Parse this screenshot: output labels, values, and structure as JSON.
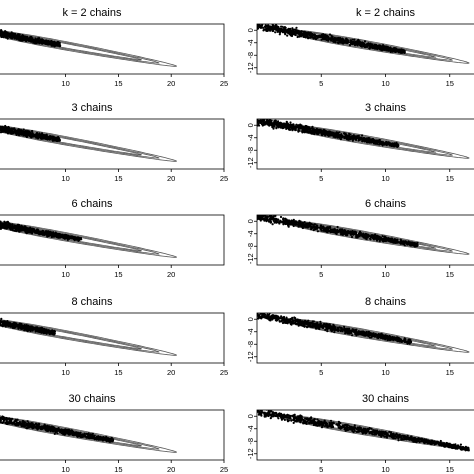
{
  "chart_data": [
    {
      "type": "scatter",
      "title": "k = 2 chains",
      "x_ticks": [
        "10",
        "15",
        "20",
        "25"
      ],
      "y_ticks": [],
      "xlim": [
        0,
        25
      ],
      "ylim": [
        -14,
        2
      ],
      "cloud_end_x": 9.5,
      "contour_levels": 3
    },
    {
      "type": "scatter",
      "title": "k = 2 chains",
      "x_ticks": [
        "5",
        "10",
        "15"
      ],
      "y_ticks": [
        "0",
        "-4",
        "-8",
        "-12"
      ],
      "xlim": [
        0,
        20
      ],
      "ylim": [
        -14,
        2
      ],
      "cloud_end_x": 11.5,
      "contour_levels": 3
    },
    {
      "type": "scatter",
      "title": "3 chains",
      "x_ticks": [
        "10",
        "15",
        "20",
        "25"
      ],
      "y_ticks": [],
      "xlim": [
        0,
        25
      ],
      "ylim": [
        -14,
        2
      ],
      "cloud_end_x": 9.5,
      "contour_levels": 3
    },
    {
      "type": "scatter",
      "title": "3 chains",
      "x_ticks": [
        "5",
        "10",
        "15"
      ],
      "y_ticks": [
        "0",
        "-4",
        "-8",
        "-12"
      ],
      "xlim": [
        0,
        20
      ],
      "ylim": [
        -14,
        2
      ],
      "cloud_end_x": 11.0,
      "contour_levels": 3
    },
    {
      "type": "scatter",
      "title": "6 chains",
      "x_ticks": [
        "10",
        "15",
        "20"
      ],
      "y_ticks": [],
      "xlim": [
        0,
        25
      ],
      "ylim": [
        -14,
        2
      ],
      "cloud_end_x": 11.5,
      "contour_levels": 3
    },
    {
      "type": "scatter",
      "title": "6 chains",
      "x_ticks": [
        "5",
        "10",
        "15"
      ],
      "y_ticks": [
        "0",
        "-4",
        "-8",
        "-12"
      ],
      "xlim": [
        0,
        20
      ],
      "ylim": [
        -14,
        2
      ],
      "cloud_end_x": 12.5,
      "contour_levels": 3
    },
    {
      "type": "scatter",
      "title": "8 chains",
      "x_ticks": [
        "10",
        "15",
        "20",
        "25"
      ],
      "y_ticks": [],
      "xlim": [
        0,
        25
      ],
      "ylim": [
        -14,
        2
      ],
      "cloud_end_x": 9.0,
      "contour_levels": 3
    },
    {
      "type": "scatter",
      "title": "8 chains",
      "x_ticks": [
        "5",
        "10",
        "15"
      ],
      "y_ticks": [
        "0",
        "-4",
        "-8",
        "-12"
      ],
      "xlim": [
        0,
        20
      ],
      "ylim": [
        -14,
        2
      ],
      "cloud_end_x": 12.0,
      "contour_levels": 3
    },
    {
      "type": "scatter",
      "title": "30 chains",
      "x_ticks": [
        "10",
        "15",
        "20",
        "25"
      ],
      "y_ticks": [],
      "xlim": [
        0,
        25
      ],
      "ylim": [
        -14,
        2
      ],
      "cloud_end_x": 14.5,
      "contour_levels": 3
    },
    {
      "type": "scatter",
      "title": "30 chains",
      "x_ticks": [
        "5",
        "10",
        "15"
      ],
      "y_ticks": [
        "0",
        "-4",
        "-8",
        "-12"
      ],
      "xlim": [
        0,
        20
      ],
      "ylim": [
        -14,
        2
      ],
      "cloud_end_x": 16.5,
      "contour_levels": 3
    }
  ]
}
